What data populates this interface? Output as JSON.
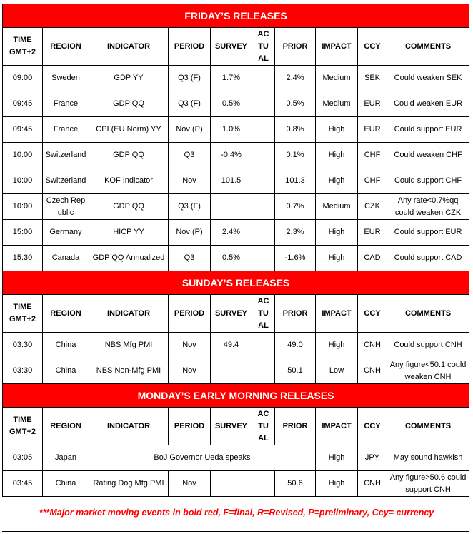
{
  "headers": [
    "TIME GMT+2",
    "REGION",
    "INDICATOR",
    "PERIOD",
    "SURVEY",
    "AC TU AL",
    "PRIOR",
    "IMPACT",
    "CCY",
    "COMMENTS"
  ],
  "sections": [
    {
      "title": "FRIDAY’S RELEASES",
      "rows": [
        [
          "09:00",
          "Sweden",
          "GDP YY",
          "Q3 (F)",
          "1.7%",
          "",
          "2.4%",
          "Medium",
          "SEK",
          "Could weaken SEK"
        ],
        [
          "09:45",
          "France",
          "GDP QQ",
          "Q3 (F)",
          "0.5%",
          "",
          "0.5%",
          "Medium",
          "EUR",
          "Could weaken EUR"
        ],
        [
          "09:45",
          "France",
          "CPI (EU Norm) YY",
          "Nov (P)",
          "1.0%",
          "",
          "0.8%",
          "High",
          "EUR",
          "Could support EUR"
        ],
        [
          "10:00",
          "Switzerland",
          "GDP QQ",
          "Q3",
          "-0.4%",
          "",
          "0.1%",
          "High",
          "CHF",
          "Could weaken CHF"
        ],
        [
          "10:00",
          "Switzerland",
          "KOF Indicator",
          "Nov",
          "101.5",
          "",
          "101.3",
          "High",
          "CHF",
          "Could support CHF"
        ],
        [
          "10:00",
          "Czech Republic",
          "GDP QQ",
          "Q3 (F)",
          "",
          "",
          "0.7%",
          "Medium",
          "CZK",
          "Any rate<0.7%qq could weaken CZK"
        ],
        [
          "15:00",
          "Germany",
          "HICP YY",
          "Nov (P)",
          "2.4%",
          "",
          "2.3%",
          "High",
          "EUR",
          "Could support EUR"
        ],
        [
          "15:30",
          "Canada",
          "GDP QQ Annualized",
          "Q3",
          "0.5%",
          "",
          "-1.6%",
          "High",
          "CAD",
          "Could support CAD"
        ]
      ]
    },
    {
      "title": "SUNDAY’S RELEASES",
      "rows": [
        [
          "03:30",
          "China",
          "NBS Mfg PMI",
          "Nov",
          "49.4",
          "",
          "49.0",
          "High",
          "CNH",
          "Could support CNH"
        ],
        [
          "03:30",
          "China",
          "NBS Non-Mfg PMI",
          "Nov",
          "",
          "",
          "50.1",
          "Low",
          "CNH",
          "Any figure<50.1 could weaken CNH"
        ]
      ]
    },
    {
      "title": "MONDAY’S EARLY MORNING RELEASES",
      "rows": [
        [
          "03:05",
          "Japan",
          "BoJ Governor Ueda speaks",
          null,
          null,
          null,
          null,
          "High",
          "JPY",
          "May sound hawkish"
        ],
        [
          "03:45",
          "China",
          "Rating Dog Mfg PMI",
          "Nov",
          "",
          "",
          "50.6",
          "High",
          "CNH",
          "Any figure>50.6 could support CNH"
        ]
      ]
    }
  ],
  "footnote": "***Major market moving events in bold red, F=final, R=Revised, P=preliminary, Ccy= currency",
  "colors": {
    "section_bg": "#ff0000",
    "footnote": "#ff0000"
  }
}
